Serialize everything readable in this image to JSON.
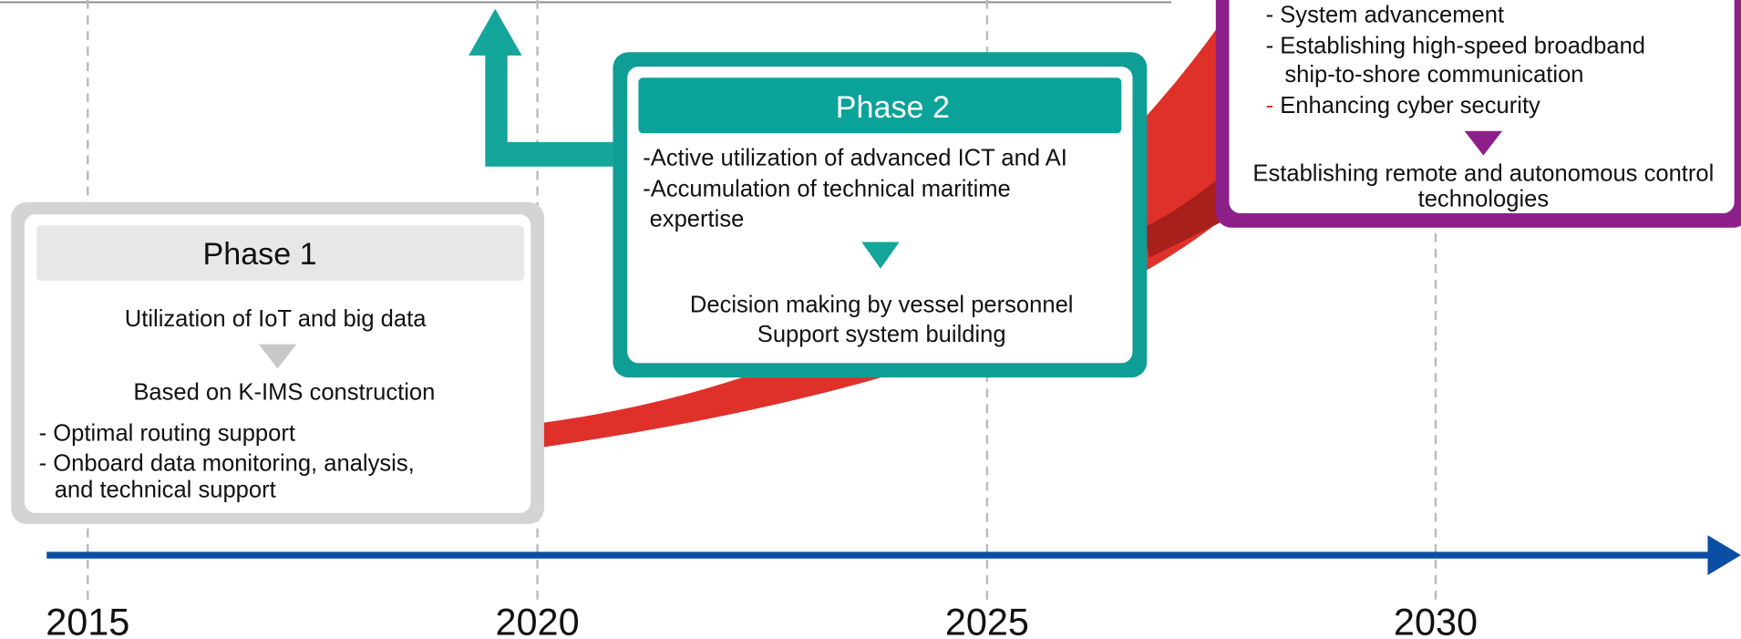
{
  "axis": {
    "years": [
      "2015",
      "2020",
      "2025",
      "2030"
    ]
  },
  "phases": [
    {
      "title": "Phase 1",
      "intro": "Utilization of IoT and big data",
      "result": "Based on K-IMS construction",
      "items": [
        "- Optimal routing support",
        "- Onboard data monitoring, analysis,",
        "and technical support"
      ]
    },
    {
      "title": "Phase 2",
      "items": [
        "-Active utilization of advanced ICT and AI",
        "-Accumulation of  technical maritime",
        "expertise"
      ],
      "result": [
        "Decision making by vessel personnel",
        "Support system building"
      ]
    },
    {
      "items": [
        "- System advancement",
        "- Establishing high-speed broadband",
        "ship-to-shore communication",
        {
          "marker": "-",
          "text": " Enhancing cyber security"
        }
      ],
      "result": [
        "Establishing remote and autonomous control",
        "technologies"
      ]
    }
  ]
}
